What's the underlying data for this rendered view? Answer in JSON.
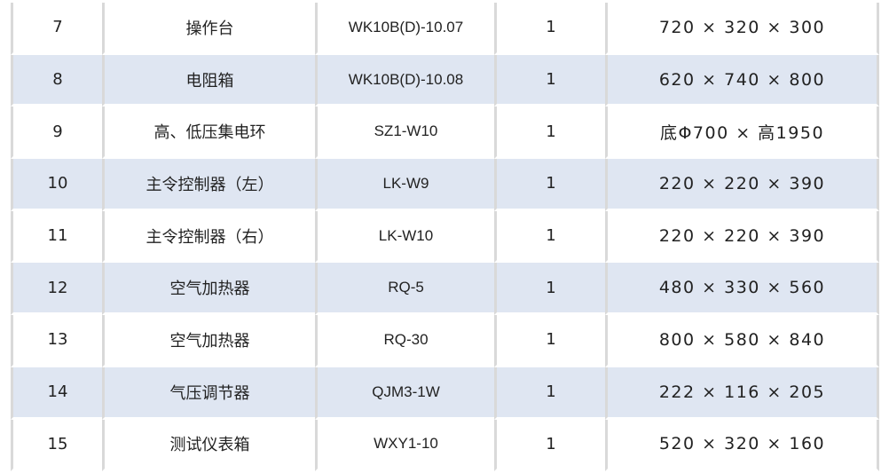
{
  "rows": [
    {
      "no": "7",
      "name": "操作台",
      "model": "WK10B(D)-10.07",
      "qty": "1",
      "size": "720 × 320 × 300"
    },
    {
      "no": "8",
      "name": "电阻箱",
      "model": "WK10B(D)-10.08",
      "qty": "1",
      "size": "620 × 740 × 800"
    },
    {
      "no": "9",
      "name": "高、低压集电环",
      "model": "SZ1-W10",
      "qty": "1",
      "size": "底Φ700 × 高1950"
    },
    {
      "no": "10",
      "name": "主令控制器（左）",
      "model": "LK-W9",
      "qty": "1",
      "size": "220 × 220 × 390"
    },
    {
      "no": "11",
      "name": "主令控制器（右）",
      "model": "LK-W10",
      "qty": "1",
      "size": "220 × 220 × 390"
    },
    {
      "no": "12",
      "name": "空气加热器",
      "model": "RQ-5",
      "qty": "1",
      "size": "480 × 330 × 560"
    },
    {
      "no": "13",
      "name": "空气加热器",
      "model": "RQ-30",
      "qty": "1",
      "size": "800 × 580 × 840"
    },
    {
      "no": "14",
      "name": "气压调节器",
      "model": "QJM3-1W",
      "qty": "1",
      "size": "222 × 116 × 205"
    },
    {
      "no": "15",
      "name": "测试仪表箱",
      "model": "WXY1-10",
      "qty": "1",
      "size": "520 × 320 × 160"
    }
  ],
  "colors": {
    "alt_row": "#dfe6f2",
    "border": "#d9d9d9"
  }
}
